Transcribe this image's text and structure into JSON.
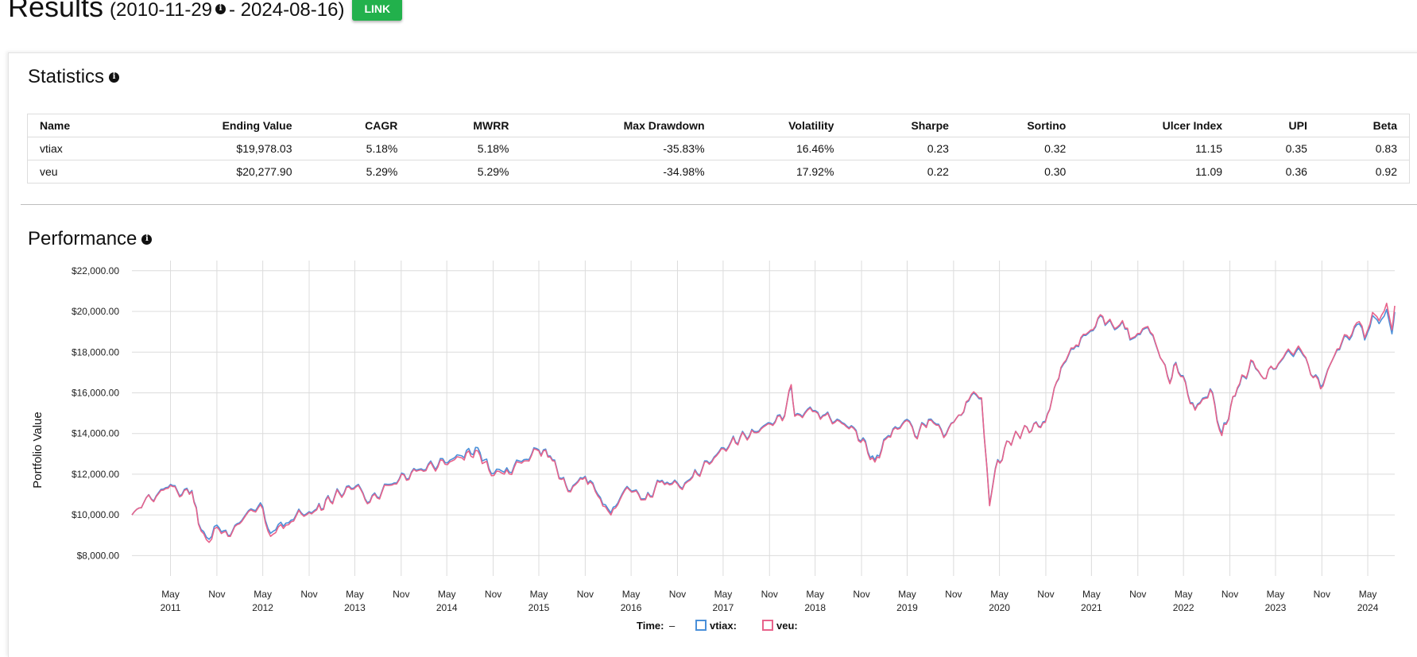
{
  "header": {
    "title": "Results",
    "range_open": "(2010-11-29",
    "range_close": " - 2024-08-16)",
    "link_label": "LINK"
  },
  "statistics": {
    "title": "Statistics",
    "columns": [
      "Name",
      "Ending Value",
      "CAGR",
      "MWRR",
      "Max Drawdown",
      "Volatility",
      "Sharpe",
      "Sortino",
      "Ulcer Index",
      "UPI",
      "Beta"
    ],
    "rows": [
      [
        "vtiax",
        "$19,978.03",
        "5.18%",
        "5.18%",
        "-35.83%",
        "16.46%",
        "0.23",
        "0.32",
        "11.15",
        "0.35",
        "0.83"
      ],
      [
        "veu",
        "$20,277.90",
        "5.29%",
        "5.29%",
        "-34.98%",
        "17.92%",
        "0.22",
        "0.30",
        "11.09",
        "0.36",
        "0.92"
      ]
    ]
  },
  "performance": {
    "title": "Performance"
  },
  "colors": {
    "vtiax": "#4a90d9",
    "veu": "#e8638b",
    "grid": "#dcdcdc",
    "link_button": "#22b14c"
  },
  "chart_data": {
    "type": "line",
    "ylabel": "Portfolio Value",
    "ylim": [
      7000,
      22500
    ],
    "y_ticks": [
      "$8,000.00",
      "$10,000.00",
      "$12,000.00",
      "$14,000.00",
      "$16,000.00",
      "$18,000.00",
      "$20,000.00",
      "$22,000.00"
    ],
    "x_range": [
      "2010-11-29",
      "2024-08-16"
    ],
    "x_ticks": [
      [
        "May",
        "2011"
      ],
      [
        "Nov",
        ""
      ],
      [
        "May",
        "2012"
      ],
      [
        "Nov",
        ""
      ],
      [
        "May",
        "2013"
      ],
      [
        "Nov",
        ""
      ],
      [
        "May",
        "2014"
      ],
      [
        "Nov",
        ""
      ],
      [
        "May",
        "2015"
      ],
      [
        "Nov",
        ""
      ],
      [
        "May",
        "2016"
      ],
      [
        "Nov",
        ""
      ],
      [
        "May",
        "2017"
      ],
      [
        "Nov",
        ""
      ],
      [
        "May",
        "2018"
      ],
      [
        "Nov",
        ""
      ],
      [
        "May",
        "2019"
      ],
      [
        "Nov",
        ""
      ],
      [
        "May",
        "2020"
      ],
      [
        "Nov",
        ""
      ],
      [
        "May",
        "2021"
      ],
      [
        "Nov",
        ""
      ],
      [
        "May",
        "2022"
      ],
      [
        "Nov",
        ""
      ],
      [
        "May",
        "2023"
      ],
      [
        "Nov",
        ""
      ],
      [
        "May",
        "2024"
      ]
    ],
    "grid": true,
    "legend": {
      "position": "bottom",
      "time_label": "Time:",
      "time_value": "–"
    },
    "series": [
      {
        "name": "vtiax:",
        "points": [
          [
            "2010-11-29",
            10000
          ],
          [
            "2011-01-15",
            10600
          ],
          [
            "2011-03-15",
            11100
          ],
          [
            "2011-05-01",
            11500
          ],
          [
            "2011-06-15",
            11000
          ],
          [
            "2011-07-25",
            11200
          ],
          [
            "2011-08-20",
            9600
          ],
          [
            "2011-10-01",
            8800
          ],
          [
            "2011-11-01",
            9500
          ],
          [
            "2011-12-15",
            9000
          ],
          [
            "2012-03-15",
            10300
          ],
          [
            "2012-05-01",
            10400
          ],
          [
            "2012-06-01",
            9100
          ],
          [
            "2012-08-01",
            9600
          ],
          [
            "2012-10-01",
            10100
          ],
          [
            "2012-12-01",
            10300
          ],
          [
            "2013-03-01",
            11100
          ],
          [
            "2013-05-15",
            11500
          ],
          [
            "2013-06-20",
            10600
          ],
          [
            "2013-09-15",
            11500
          ],
          [
            "2013-12-31",
            12200
          ],
          [
            "2014-06-30",
            12900
          ],
          [
            "2014-09-01",
            13300
          ],
          [
            "2014-10-15",
            12300
          ],
          [
            "2014-12-15",
            12100
          ],
          [
            "2015-05-01",
            13200
          ],
          [
            "2015-06-15",
            12900
          ],
          [
            "2015-08-25",
            11200
          ],
          [
            "2015-11-01",
            11900
          ],
          [
            "2016-01-20",
            10500
          ],
          [
            "2016-02-11",
            10100
          ],
          [
            "2016-04-15",
            11400
          ],
          [
            "2016-06-27",
            10800
          ],
          [
            "2016-09-01",
            11700
          ],
          [
            "2016-11-10",
            11400
          ],
          [
            "2016-12-31",
            11900
          ],
          [
            "2017-06-01",
            13600
          ],
          [
            "2017-09-01",
            14100
          ],
          [
            "2017-12-31",
            14900
          ],
          [
            "2018-01-26",
            16300
          ],
          [
            "2018-02-09",
            14900
          ],
          [
            "2018-04-01",
            15200
          ],
          [
            "2018-06-01",
            14900
          ],
          [
            "2018-10-01",
            14300
          ],
          [
            "2018-12-24",
            12700
          ],
          [
            "2019-02-15",
            13900
          ],
          [
            "2019-04-30",
            14700
          ],
          [
            "2019-06-01",
            13900
          ],
          [
            "2019-07-25",
            14700
          ],
          [
            "2019-10-03",
            14000
          ],
          [
            "2019-12-31",
            15600
          ],
          [
            "2020-01-20",
            16000
          ],
          [
            "2020-02-20",
            15700
          ],
          [
            "2020-03-23",
            10500
          ],
          [
            "2020-04-15",
            12300
          ],
          [
            "2020-06-08",
            13600
          ],
          [
            "2020-07-31",
            14100
          ],
          [
            "2020-10-30",
            14600
          ],
          [
            "2020-12-31",
            17200
          ],
          [
            "2021-03-01",
            18300
          ],
          [
            "2021-06-15",
            19700
          ],
          [
            "2021-08-01",
            19100
          ],
          [
            "2021-09-01",
            19500
          ],
          [
            "2021-10-01",
            18600
          ],
          [
            "2021-11-20",
            19100
          ],
          [
            "2021-12-31",
            18800
          ],
          [
            "2022-03-08",
            16500
          ],
          [
            "2022-04-01",
            17500
          ],
          [
            "2022-06-16",
            15200
          ],
          [
            "2022-08-15",
            16200
          ],
          [
            "2022-09-30",
            14000
          ],
          [
            "2022-12-01",
            16200
          ],
          [
            "2023-02-01",
            17500
          ],
          [
            "2023-03-15",
            16700
          ],
          [
            "2023-06-01",
            17700
          ],
          [
            "2023-07-31",
            18200
          ],
          [
            "2023-10-27",
            16300
          ],
          [
            "2023-12-31",
            18100
          ],
          [
            "2024-03-28",
            19400
          ],
          [
            "2024-04-19",
            18600
          ],
          [
            "2024-05-20",
            19800
          ],
          [
            "2024-06-15",
            19400
          ],
          [
            "2024-07-15",
            20100
          ],
          [
            "2024-08-05",
            18900
          ],
          [
            "2024-08-16",
            19978
          ]
        ]
      },
      {
        "name": "veu:",
        "points": [
          [
            "2010-11-29",
            10000
          ],
          [
            "2011-01-15",
            10600
          ],
          [
            "2011-03-15",
            11050
          ],
          [
            "2011-05-01",
            11450
          ],
          [
            "2011-06-15",
            10950
          ],
          [
            "2011-07-25",
            11150
          ],
          [
            "2011-08-20",
            9550
          ],
          [
            "2011-10-01",
            8650
          ],
          [
            "2011-11-01",
            9400
          ],
          [
            "2011-12-15",
            8950
          ],
          [
            "2012-03-15",
            10250
          ],
          [
            "2012-05-01",
            10300
          ],
          [
            "2012-06-01",
            8950
          ],
          [
            "2012-08-01",
            9500
          ],
          [
            "2012-10-01",
            10050
          ],
          [
            "2012-12-01",
            10250
          ],
          [
            "2013-03-01",
            11050
          ],
          [
            "2013-05-15",
            11450
          ],
          [
            "2013-06-20",
            10550
          ],
          [
            "2013-09-15",
            11450
          ],
          [
            "2013-12-31",
            12150
          ],
          [
            "2014-06-30",
            12800
          ],
          [
            "2014-09-01",
            13150
          ],
          [
            "2014-10-15",
            12200
          ],
          [
            "2014-12-15",
            12000
          ],
          [
            "2015-05-01",
            13150
          ],
          [
            "2015-06-15",
            12850
          ],
          [
            "2015-08-25",
            11150
          ],
          [
            "2015-11-01",
            11850
          ],
          [
            "2016-01-20",
            10400
          ],
          [
            "2016-02-11",
            10000
          ],
          [
            "2016-04-15",
            11350
          ],
          [
            "2016-06-27",
            10750
          ],
          [
            "2016-09-01",
            11650
          ],
          [
            "2016-11-10",
            11350
          ],
          [
            "2016-12-31",
            11850
          ],
          [
            "2017-06-01",
            13550
          ],
          [
            "2017-09-01",
            14050
          ],
          [
            "2017-12-31",
            14850
          ],
          [
            "2018-01-26",
            16400
          ],
          [
            "2018-02-09",
            14850
          ],
          [
            "2018-04-01",
            15150
          ],
          [
            "2018-06-01",
            14850
          ],
          [
            "2018-10-01",
            14250
          ],
          [
            "2018-12-24",
            12600
          ],
          [
            "2019-02-15",
            13850
          ],
          [
            "2019-04-30",
            14650
          ],
          [
            "2019-06-01",
            13850
          ],
          [
            "2019-07-25",
            14650
          ],
          [
            "2019-10-03",
            13950
          ],
          [
            "2019-12-31",
            15650
          ],
          [
            "2020-01-20",
            16050
          ],
          [
            "2020-02-20",
            15750
          ],
          [
            "2020-03-23",
            10450
          ],
          [
            "2020-04-15",
            12250
          ],
          [
            "2020-06-08",
            13600
          ],
          [
            "2020-07-31",
            14100
          ],
          [
            "2020-10-30",
            14550
          ],
          [
            "2020-12-31",
            17250
          ],
          [
            "2021-03-01",
            18350
          ],
          [
            "2021-06-15",
            19750
          ],
          [
            "2021-08-01",
            19150
          ],
          [
            "2021-09-01",
            19550
          ],
          [
            "2021-10-01",
            18650
          ],
          [
            "2021-11-20",
            19150
          ],
          [
            "2021-12-31",
            18850
          ],
          [
            "2022-03-08",
            16450
          ],
          [
            "2022-04-01",
            17450
          ],
          [
            "2022-06-16",
            15150
          ],
          [
            "2022-08-15",
            16150
          ],
          [
            "2022-09-30",
            13900
          ],
          [
            "2022-12-01",
            16250
          ],
          [
            "2023-02-01",
            17550
          ],
          [
            "2023-03-15",
            16700
          ],
          [
            "2023-06-01",
            17750
          ],
          [
            "2023-07-31",
            18300
          ],
          [
            "2023-10-27",
            16200
          ],
          [
            "2023-12-31",
            18150
          ],
          [
            "2024-03-28",
            19500
          ],
          [
            "2024-04-19",
            18700
          ],
          [
            "2024-05-20",
            19950
          ],
          [
            "2024-06-15",
            19550
          ],
          [
            "2024-07-15",
            20400
          ],
          [
            "2024-08-05",
            19100
          ],
          [
            "2024-08-16",
            20278
          ]
        ]
      }
    ]
  }
}
